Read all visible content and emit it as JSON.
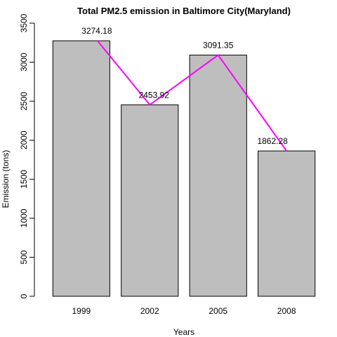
{
  "chart_data": {
    "type": "bar",
    "title": "Total PM2.5 emission in Baltimore City(Maryland)",
    "xlabel": "Years",
    "ylabel": "Emission (tons)",
    "categories": [
      "1999",
      "2002",
      "2005",
      "2008"
    ],
    "values": [
      3274.18,
      2453.92,
      3091.35,
      1862.28
    ],
    "data_labels": [
      "3274.18",
      "2453.92",
      "3091.35",
      "1862.28"
    ],
    "ylim": [
      0,
      3500
    ],
    "yticks": [
      0,
      500,
      1000,
      1500,
      2000,
      2500,
      3000,
      3500
    ],
    "ytick_labels": [
      "0",
      "500",
      "1000",
      "1500",
      "2000",
      "2500",
      "3000",
      "3500"
    ],
    "grid": false,
    "legend": "none",
    "bar_color": "#bebebe",
    "bar_edge_color": "#000000",
    "line_overlay": {
      "type": "line",
      "values": [
        3274.18,
        2453.92,
        3091.35,
        1862.28
      ],
      "color": "#ff00ff"
    }
  }
}
